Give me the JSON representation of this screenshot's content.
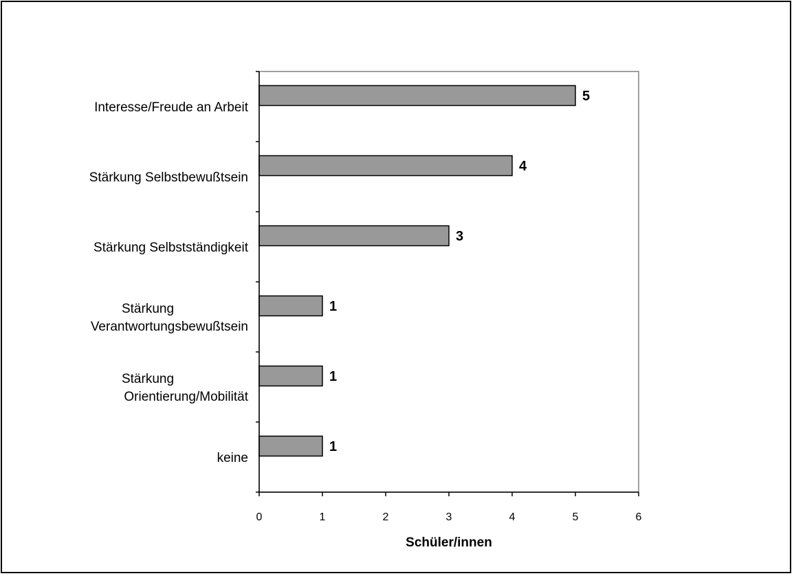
{
  "chart_data": {
    "type": "bar",
    "orientation": "horizontal",
    "categories": [
      [
        "Interesse/Freude an Arbeit"
      ],
      [
        "Stärkung Selbstbewußtsein"
      ],
      [
        "Stärkung Selbstständigkeit"
      ],
      [
        "Stärkung",
        "Verantwortungsbewußtsein"
      ],
      [
        "Stärkung",
        "Orientierung/Mobilität"
      ],
      [
        "keine"
      ]
    ],
    "values": [
      5,
      4,
      3,
      1,
      1,
      1
    ],
    "value_labels": [
      "5",
      "4",
      "3",
      "1",
      "1",
      "1"
    ],
    "xlabel": "Schüler/innen",
    "ylabel": "",
    "xlim": [
      0,
      6
    ],
    "xticks": [
      "0",
      "1",
      "2",
      "3",
      "4",
      "5",
      "6"
    ],
    "grid": false,
    "bar_color": "#999999",
    "bar_edge_color": "#000000",
    "plot_border_color": "#808080"
  }
}
